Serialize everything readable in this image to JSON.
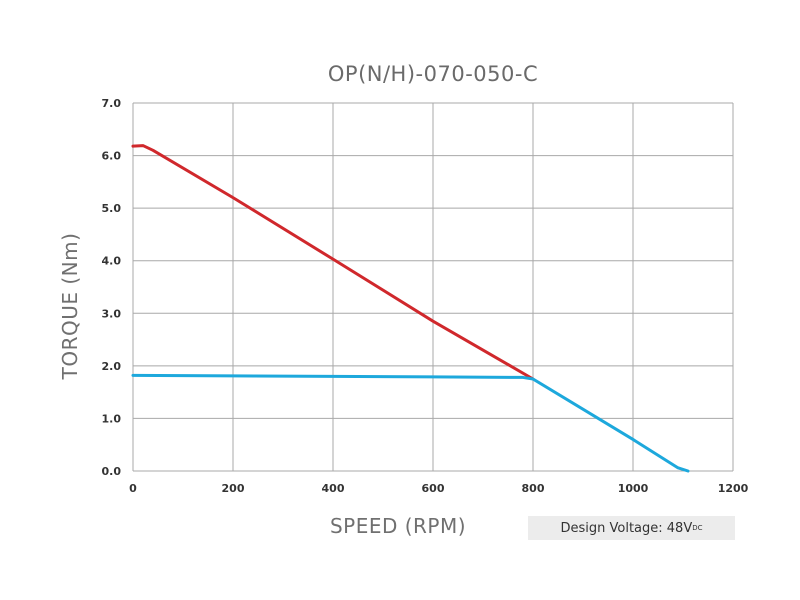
{
  "chart_data": {
    "type": "line",
    "title": "OP(N/H)-070-050-C",
    "xlabel": "SPEED (RPM)",
    "ylabel": "TORQUE (Nm)",
    "xlim": [
      0,
      1200
    ],
    "ylim": [
      0,
      7
    ],
    "x_ticks": [
      "0",
      "200",
      "400",
      "600",
      "800",
      "1000",
      "1200"
    ],
    "y_ticks": [
      "0.0",
      "1.0",
      "2.0",
      "3.0",
      "4.0",
      "5.0",
      "6.0",
      "7.0"
    ],
    "grid": true,
    "series": [
      {
        "color": "#d0282c",
        "points": [
          [
            0,
            6.18
          ],
          [
            20,
            6.19
          ],
          [
            40,
            6.1
          ],
          [
            200,
            5.2
          ],
          [
            400,
            4.03
          ],
          [
            600,
            2.85
          ],
          [
            800,
            1.75
          ]
        ]
      },
      {
        "color": "#1da8dc",
        "points": [
          [
            0,
            1.82
          ],
          [
            200,
            1.81
          ],
          [
            400,
            1.8
          ],
          [
            600,
            1.79
          ],
          [
            780,
            1.78
          ],
          [
            800,
            1.75
          ],
          [
            1000,
            0.6
          ],
          [
            1090,
            0.06
          ],
          [
            1110,
            0.0
          ]
        ]
      }
    ],
    "annotation": {
      "prefix": "Design Voltage: 48V",
      "subscript": "DC"
    }
  }
}
